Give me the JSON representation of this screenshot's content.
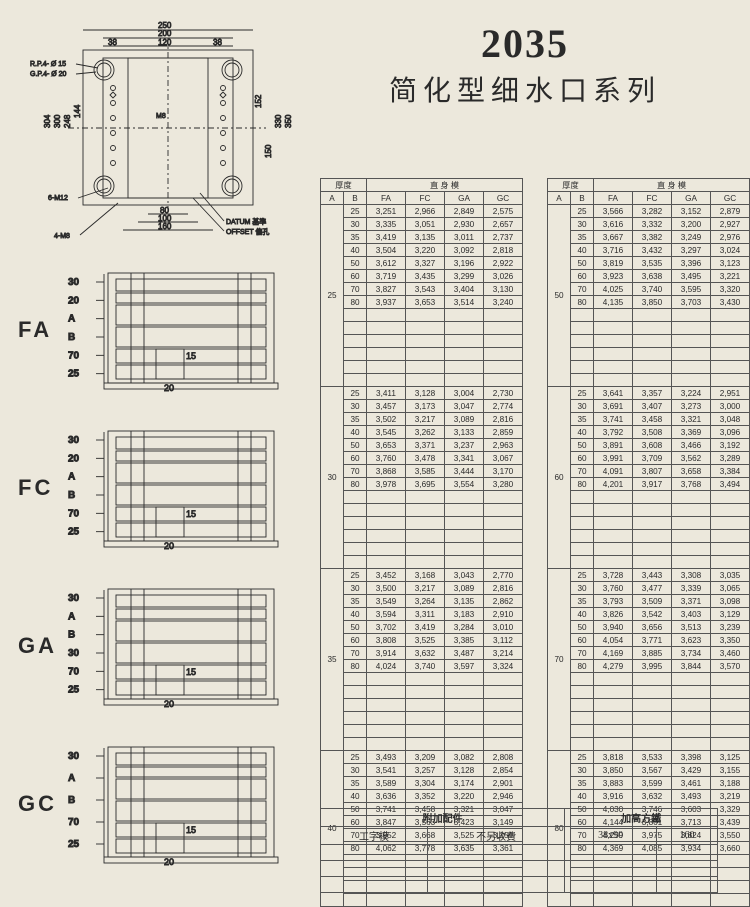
{
  "header": {
    "number": "2035",
    "subtitle": "简化型细水口系列"
  },
  "top_diagram": {
    "width_outer": 250,
    "width_200": 200,
    "width_38a": 38,
    "width_120": 120,
    "width_38b": 38,
    "height_304": 304,
    "height_300": 300,
    "height_248": 248,
    "height_144": 144,
    "height_152": 152,
    "height_150": 150,
    "height_330": 330,
    "height_350": 350,
    "width_80": 80,
    "width_100": 100,
    "width_160": 160,
    "rp_label": "R.P.4- Ø 15",
    "gp_label": "G.P.4- Ø 20",
    "m12_label": "6-M12",
    "m8_label_low": "4-M8",
    "m8_label_mid": "M8",
    "datum_label": "DATUM 基準",
    "offset_label": "OFFSET 偏孔",
    "stroke": "#2a2a2a"
  },
  "modules": [
    {
      "name": "FA",
      "dims_left": [
        "30",
        "20",
        "A",
        "B",
        "70",
        "25"
      ],
      "inner_15": "15",
      "inner_20": "20"
    },
    {
      "name": "FC",
      "dims_left": [
        "30",
        "20",
        "A",
        "B",
        "70",
        "25"
      ],
      "inner_15": "15",
      "inner_20": "20"
    },
    {
      "name": "GA",
      "dims_left": [
        "30",
        "A",
        "B",
        "30",
        "70",
        "25"
      ],
      "inner_15": "15",
      "inner_20": "20"
    },
    {
      "name": "GC",
      "dims_left": [
        "30",
        "A",
        "B",
        "70",
        "25"
      ],
      "inner_15": "15",
      "inner_20": "20"
    }
  ],
  "table_header": {
    "thick": "厚度",
    "straight": "直 身 模",
    "A": "A",
    "B": "B",
    "FA": "FA",
    "FC": "FC",
    "GA": "GA",
    "GC": "GC"
  },
  "left_table": [
    {
      "A": "25",
      "rows": [
        [
          "25",
          "3,251",
          "2,966",
          "2,849",
          "2,575"
        ],
        [
          "30",
          "3,335",
          "3,051",
          "2,930",
          "2,657"
        ],
        [
          "35",
          "3,419",
          "3,135",
          "3,011",
          "2,737"
        ],
        [
          "40",
          "3,504",
          "3,220",
          "3,092",
          "2,818"
        ],
        [
          "50",
          "3,612",
          "3,327",
          "3,196",
          "2,922"
        ],
        [
          "60",
          "3,719",
          "3,435",
          "3,299",
          "3,026"
        ],
        [
          "70",
          "3,827",
          "3,543",
          "3,404",
          "3,130"
        ],
        [
          "80",
          "3,937",
          "3,653",
          "3,514",
          "3,240"
        ]
      ],
      "blank_after": 6
    },
    {
      "A": "30",
      "rows": [
        [
          "25",
          "3,411",
          "3,128",
          "3,004",
          "2,730"
        ],
        [
          "30",
          "3,457",
          "3,173",
          "3,047",
          "2,774"
        ],
        [
          "35",
          "3,502",
          "3,217",
          "3,089",
          "2,816"
        ],
        [
          "40",
          "3,545",
          "3,262",
          "3,133",
          "2,859"
        ],
        [
          "50",
          "3,653",
          "3,371",
          "3,237",
          "2,963"
        ],
        [
          "60",
          "3,760",
          "3,478",
          "3,341",
          "3,067"
        ],
        [
          "70",
          "3,868",
          "3,585",
          "3,444",
          "3,170"
        ],
        [
          "80",
          "3,978",
          "3,695",
          "3,554",
          "3,280"
        ]
      ],
      "blank_after": 6
    },
    {
      "A": "35",
      "rows": [
        [
          "25",
          "3,452",
          "3,168",
          "3,043",
          "2,770"
        ],
        [
          "30",
          "3,500",
          "3,217",
          "3,089",
          "2,816"
        ],
        [
          "35",
          "3,549",
          "3,264",
          "3,135",
          "2,862"
        ],
        [
          "40",
          "3,594",
          "3,311",
          "3,183",
          "2,910"
        ],
        [
          "50",
          "3,702",
          "3,419",
          "3,284",
          "3,010"
        ],
        [
          "60",
          "3,808",
          "3,525",
          "3,385",
          "3,112"
        ],
        [
          "70",
          "3,914",
          "3,632",
          "3,487",
          "3,214"
        ],
        [
          "80",
          "4,024",
          "3,740",
          "3,597",
          "3,324"
        ]
      ],
      "blank_after": 6
    },
    {
      "A": "40",
      "rows": [
        [
          "25",
          "3,493",
          "3,209",
          "3,082",
          "2,808"
        ],
        [
          "30",
          "3,541",
          "3,257",
          "3,128",
          "2,854"
        ],
        [
          "35",
          "3,589",
          "3,304",
          "3,174",
          "2,901"
        ],
        [
          "40",
          "3,636",
          "3,352",
          "3,220",
          "2,946"
        ],
        [
          "50",
          "3,741",
          "3,458",
          "3,321",
          "3,047"
        ],
        [
          "60",
          "3,847",
          "3,563",
          "3,423",
          "3,149"
        ],
        [
          "70",
          "3,952",
          "3,668",
          "3,525",
          "3,251"
        ],
        [
          "80",
          "4,062",
          "3,778",
          "3,635",
          "3,361"
        ]
      ],
      "blank_after": 4
    }
  ],
  "right_table": [
    {
      "A": "50",
      "rows": [
        [
          "25",
          "3,566",
          "3,282",
          "3,152",
          "2,879"
        ],
        [
          "30",
          "3,616",
          "3,332",
          "3,200",
          "2,927"
        ],
        [
          "35",
          "3,667",
          "3,382",
          "3,249",
          "2,976"
        ],
        [
          "40",
          "3,716",
          "3,432",
          "3,297",
          "3,024"
        ],
        [
          "50",
          "3,819",
          "3,535",
          "3,396",
          "3,123"
        ],
        [
          "60",
          "3,923",
          "3,638",
          "3,495",
          "3,221"
        ],
        [
          "70",
          "4,025",
          "3,740",
          "3,595",
          "3,320"
        ],
        [
          "80",
          "4,135",
          "3,850",
          "3,703",
          "3,430"
        ]
      ],
      "blank_after": 6
    },
    {
      "A": "60",
      "rows": [
        [
          "25",
          "3,641",
          "3,357",
          "3,224",
          "2,951"
        ],
        [
          "30",
          "3,691",
          "3,407",
          "3,273",
          "3,000"
        ],
        [
          "35",
          "3,741",
          "3,458",
          "3,321",
          "3,048"
        ],
        [
          "40",
          "3,792",
          "3,508",
          "3,369",
          "3,096"
        ],
        [
          "50",
          "3,891",
          "3,608",
          "3,466",
          "3,192"
        ],
        [
          "60",
          "3,991",
          "3,709",
          "3,562",
          "3,289"
        ],
        [
          "70",
          "4,091",
          "3,807",
          "3,658",
          "3,384"
        ],
        [
          "80",
          "4,201",
          "3,917",
          "3,768",
          "3,494"
        ]
      ],
      "blank_after": 6
    },
    {
      "A": "70",
      "rows": [
        [
          "25",
          "3,728",
          "3,443",
          "3,308",
          "3,035"
        ],
        [
          "30",
          "3,760",
          "3,477",
          "3,339",
          "3,065"
        ],
        [
          "35",
          "3,793",
          "3,509",
          "3,371",
          "3,098"
        ],
        [
          "40",
          "3,826",
          "3,542",
          "3,403",
          "3,129"
        ],
        [
          "50",
          "3,940",
          "3,656",
          "3,513",
          "3,239"
        ],
        [
          "60",
          "4,054",
          "3,771",
          "3,623",
          "3,350"
        ],
        [
          "70",
          "4,169",
          "3,885",
          "3,734",
          "3,460"
        ],
        [
          "80",
          "4,279",
          "3,995",
          "3,844",
          "3,570"
        ]
      ],
      "blank_after": 6
    },
    {
      "A": "80",
      "rows": [
        [
          "25",
          "3,818",
          "3,533",
          "3,398",
          "3,125"
        ],
        [
          "30",
          "3,850",
          "3,567",
          "3,429",
          "3,155"
        ],
        [
          "35",
          "3,883",
          "3,599",
          "3,461",
          "3,188"
        ],
        [
          "40",
          "3,916",
          "3,632",
          "3,493",
          "3,219"
        ],
        [
          "50",
          "4,030",
          "3,746",
          "3,603",
          "3,329"
        ],
        [
          "60",
          "4,144",
          "3,861",
          "3,713",
          "3,439"
        ],
        [
          "70",
          "4,259",
          "3,975",
          "3,824",
          "3,550"
        ],
        [
          "80",
          "4,369",
          "4,085",
          "3,934",
          "3,660"
        ]
      ],
      "blank_after": 4
    }
  ],
  "bottom": {
    "acc_title": "附加配件",
    "height_title": "加高方鐵",
    "col1": "工字模",
    "col2": "不另收費",
    "col3": "38x90",
    "col4": "160"
  }
}
